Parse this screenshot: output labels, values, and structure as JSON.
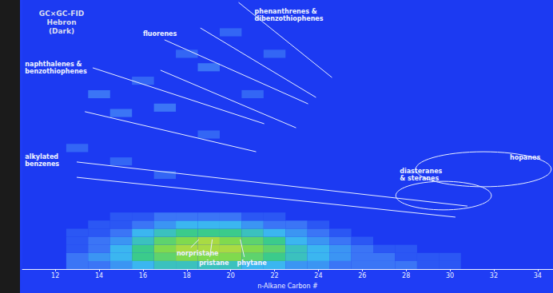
{
  "chart_data": {
    "type": "heatmap",
    "title": "GC×GC-FID\nHebron\n(Dark)",
    "x_label": "n-Alkane Carbon #",
    "xlim": [
      10.5,
      34.7
    ],
    "xticks": [
      12,
      14,
      16,
      18,
      20,
      22,
      24,
      26,
      28,
      30,
      32,
      34
    ],
    "ylim": [
      0,
      10
    ],
    "tick_labels": "x",
    "grid": false,
    "value_range": [
      0,
      10
    ],
    "cell_size": [
      1,
      0.3
    ],
    "cells": [
      [
        13,
        0.15,
        2
      ],
      [
        14,
        0.15,
        2
      ],
      [
        15,
        0.15,
        3
      ],
      [
        16,
        0.15,
        4
      ],
      [
        17,
        0.15,
        5
      ],
      [
        18,
        0.15,
        5
      ],
      [
        19,
        0.15,
        5
      ],
      [
        20,
        0.15,
        5
      ],
      [
        21,
        0.15,
        4
      ],
      [
        22,
        0.15,
        4
      ],
      [
        23,
        0.15,
        3
      ],
      [
        24,
        0.15,
        3
      ],
      [
        25,
        0.15,
        2
      ],
      [
        26,
        0.15,
        2
      ],
      [
        27,
        0.15,
        2
      ],
      [
        28,
        0.15,
        2
      ],
      [
        29,
        0.15,
        1
      ],
      [
        30,
        0.15,
        1
      ],
      [
        13,
        0.45,
        2
      ],
      [
        14,
        0.45,
        3
      ],
      [
        15,
        0.45,
        4
      ],
      [
        16,
        0.45,
        6
      ],
      [
        17,
        0.45,
        7
      ],
      [
        18,
        0.45,
        8
      ],
      [
        19,
        0.45,
        8
      ],
      [
        20,
        0.45,
        8
      ],
      [
        21,
        0.45,
        7
      ],
      [
        22,
        0.45,
        6
      ],
      [
        23,
        0.45,
        5
      ],
      [
        24,
        0.45,
        4
      ],
      [
        25,
        0.45,
        3
      ],
      [
        26,
        0.45,
        2
      ],
      [
        27,
        0.45,
        2
      ],
      [
        28,
        0.45,
        1
      ],
      [
        29,
        0.45,
        1
      ],
      [
        30,
        0.45,
        1
      ],
      [
        13,
        0.75,
        1
      ],
      [
        14,
        0.75,
        2
      ],
      [
        15,
        0.75,
        4
      ],
      [
        16,
        0.75,
        6
      ],
      [
        17,
        0.75,
        8
      ],
      [
        18,
        0.75,
        9
      ],
      [
        19,
        0.75,
        9
      ],
      [
        20,
        0.75,
        9
      ],
      [
        21,
        0.75,
        8
      ],
      [
        22,
        0.75,
        7
      ],
      [
        23,
        0.75,
        5
      ],
      [
        24,
        0.75,
        4
      ],
      [
        25,
        0.75,
        3
      ],
      [
        26,
        0.75,
        2
      ],
      [
        27,
        0.75,
        1
      ],
      [
        28,
        0.75,
        1
      ],
      [
        13,
        1.05,
        1
      ],
      [
        14,
        1.05,
        2
      ],
      [
        15,
        1.05,
        3
      ],
      [
        16,
        1.05,
        5
      ],
      [
        17,
        1.05,
        7
      ],
      [
        18,
        1.05,
        8
      ],
      [
        19,
        1.05,
        9
      ],
      [
        20,
        1.05,
        8
      ],
      [
        21,
        1.05,
        7
      ],
      [
        22,
        1.05,
        6
      ],
      [
        23,
        1.05,
        4
      ],
      [
        24,
        1.05,
        3
      ],
      [
        25,
        1.05,
        2
      ],
      [
        26,
        1.05,
        1
      ],
      [
        13,
        1.35,
        1
      ],
      [
        14,
        1.35,
        1
      ],
      [
        15,
        1.35,
        2
      ],
      [
        16,
        1.35,
        4
      ],
      [
        17,
        1.35,
        5
      ],
      [
        18,
        1.35,
        6
      ],
      [
        19,
        1.35,
        6
      ],
      [
        20,
        1.35,
        6
      ],
      [
        21,
        1.35,
        5
      ],
      [
        22,
        1.35,
        4
      ],
      [
        23,
        1.35,
        3
      ],
      [
        24,
        1.35,
        2
      ],
      [
        25,
        1.35,
        1
      ],
      [
        14,
        1.65,
        1
      ],
      [
        15,
        1.65,
        1
      ],
      [
        16,
        1.65,
        2
      ],
      [
        17,
        1.65,
        3
      ],
      [
        18,
        1.65,
        4
      ],
      [
        19,
        1.65,
        4
      ],
      [
        20,
        1.65,
        4
      ],
      [
        21,
        1.65,
        3
      ],
      [
        22,
        1.65,
        2
      ],
      [
        23,
        1.65,
        2
      ],
      [
        24,
        1.65,
        1
      ],
      [
        15,
        1.95,
        1
      ],
      [
        16,
        1.95,
        1
      ],
      [
        17,
        1.95,
        2
      ],
      [
        18,
        1.95,
        2
      ],
      [
        19,
        1.95,
        2
      ],
      [
        20,
        1.95,
        2
      ],
      [
        21,
        1.95,
        1
      ],
      [
        22,
        1.95,
        1
      ],
      [
        14,
        6.5,
        2
      ],
      [
        15,
        5.8,
        2
      ],
      [
        16,
        7,
        1.5
      ],
      [
        17,
        6,
        2
      ],
      [
        18,
        8,
        1.5
      ],
      [
        19,
        7.5,
        2
      ],
      [
        20,
        8.8,
        1.5
      ],
      [
        13,
        4.5,
        1.5
      ],
      [
        15,
        4,
        1.5
      ],
      [
        17,
        3.5,
        1.5
      ],
      [
        19,
        5,
        1.5
      ],
      [
        21,
        6.5,
        1.5
      ],
      [
        22,
        8,
        1.5
      ]
    ],
    "lines": [
      [
        [
          20.36,
          9.91
        ],
        [
          24.62,
          7.12
        ]
      ],
      [
        [
          18.62,
          8.96
        ],
        [
          23.89,
          6.38
        ]
      ],
      [
        [
          16.98,
          8.52
        ],
        [
          23.53,
          6.14
        ]
      ],
      [
        [
          16.8,
          7.39
        ],
        [
          22.98,
          5.25
        ]
      ],
      [
        [
          13.71,
          7.48
        ],
        [
          21.53,
          5.4
        ]
      ],
      [
        [
          13.35,
          5.85
        ],
        [
          21.16,
          4.36
        ]
      ],
      [
        [
          12.98,
          3.98
        ],
        [
          30.8,
          2.34
        ]
      ],
      [
        [
          12.98,
          3.41
        ],
        [
          30.25,
          1.93
        ]
      ],
      [
        [
          18.18,
          0.8
        ],
        [
          18.55,
          1.1
        ]
      ],
      [
        [
          19.05,
          0.45
        ],
        [
          19.16,
          1.1
        ]
      ],
      [
        [
          20.62,
          0.45
        ],
        [
          20.44,
          1.1
        ]
      ]
    ],
    "ellipses": [
      {
        "cx": 29.71,
        "cy": 2.73,
        "rx": 2.18,
        "ry": 0.53
      },
      {
        "cx": 31.53,
        "cy": 3.71,
        "rx": 3.09,
        "ry": 0.65
      }
    ],
    "annotations": [
      {
        "text": "phenanthrenes &\ndibenzothiophenes",
        "x": 21.09,
        "y": 9.7
      },
      {
        "text": "fluorenes",
        "x": 16.0,
        "y": 8.87
      },
      {
        "text": "naphthalenes &\nbenzothiophenes",
        "x": 10.62,
        "y": 7.74
      },
      {
        "text": "alkylated\nbenzenes",
        "x": 10.62,
        "y": 4.3
      },
      {
        "text": "diasteranes\n& steranes",
        "x": 27.71,
        "y": 3.77
      },
      {
        "text": "hopanes",
        "x": 32.73,
        "y": 4.27
      },
      {
        "text": "norpristane",
        "x": 17.53,
        "y": 0.71
      },
      {
        "text": "pristane",
        "x": 18.55,
        "y": 0.36
      },
      {
        "text": "phytane",
        "x": 20.29,
        "y": 0.36
      }
    ]
  }
}
